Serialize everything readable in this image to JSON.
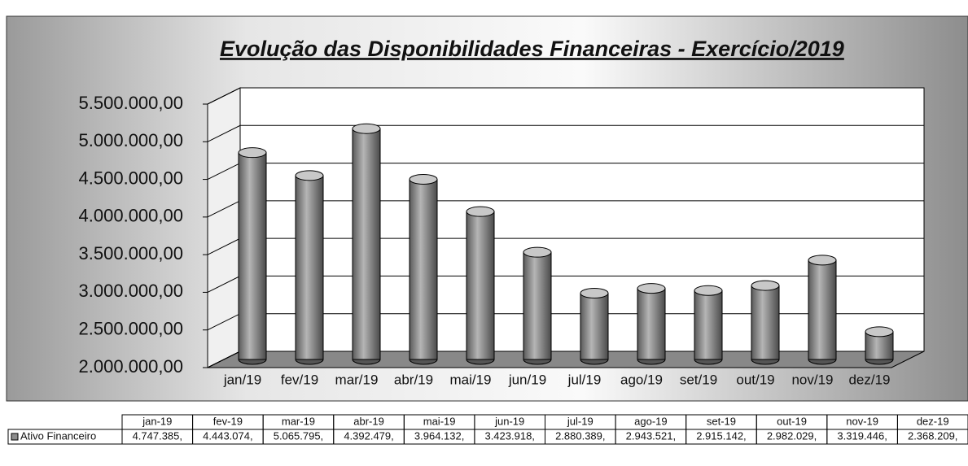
{
  "chart_data": {
    "type": "bar",
    "title": "Evolução das Disponibilidades Financeiras - Exercício/2019",
    "categories": [
      "jan/19",
      "fev/19",
      "mar/19",
      "abr/19",
      "mai/19",
      "jun/19",
      "jul/19",
      "ago/19",
      "set/19",
      "out/19",
      "nov/19",
      "dez/19"
    ],
    "table_categories": [
      "jan-19",
      "fev-19",
      "mar-19",
      "abr-19",
      "mai-19",
      "jun-19",
      "jul-19",
      "ago-19",
      "set-19",
      "out-19",
      "nov-19",
      "dez-19"
    ],
    "series": [
      {
        "name": "Ativo Financeiro",
        "color": "#8c8c8c",
        "values": [
          4747385,
          4443074,
          5065795,
          4392479,
          3964132,
          3423918,
          2880389,
          2943521,
          2915142,
          2982029,
          3319446,
          2368209
        ],
        "value_labels": [
          "4.747.385,",
          "4.443.074,",
          "5.065.795,",
          "4.392.479,",
          "3.964.132,",
          "3.423.918,",
          "2.880.389,",
          "2.943.521,",
          "2.915.142,",
          "2.982.029,",
          "3.319.446,",
          "2.368.209,"
        ]
      }
    ],
    "ylim": [
      2000000,
      5500000
    ],
    "yticks": [
      {
        "value": 2000000,
        "label": "2.000.000,00"
      },
      {
        "value": 2500000,
        "label": "2.500.000,00"
      },
      {
        "value": 3000000,
        "label": "3.000.000,00"
      },
      {
        "value": 3500000,
        "label": "3.500.000,00"
      },
      {
        "value": 4000000,
        "label": "4.000.000,00"
      },
      {
        "value": 4500000,
        "label": "4.500.000,00"
      },
      {
        "value": 5000000,
        "label": "5.000.000,00"
      },
      {
        "value": 5500000,
        "label": "5.500.000,00"
      }
    ],
    "grid": true
  }
}
